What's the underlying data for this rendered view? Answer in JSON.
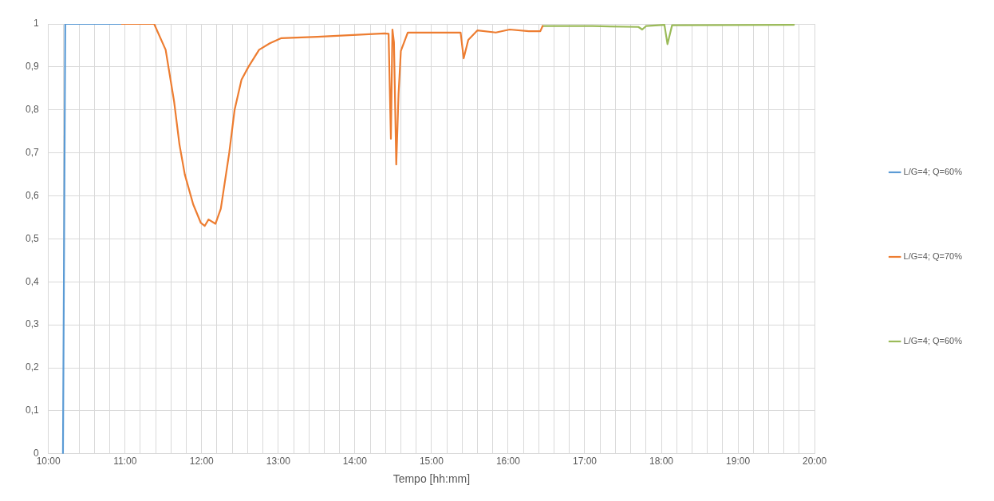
{
  "chart_data": {
    "type": "line",
    "xlabel": "Tempo [hh:mm]",
    "xlim": [
      10,
      20
    ],
    "xticks": [
      {
        "value": 10,
        "label": "10:00"
      },
      {
        "value": 10.2,
        "label": null
      },
      {
        "value": 10.4,
        "label": null
      },
      {
        "value": 10.6,
        "label": null
      },
      {
        "value": 10.8,
        "label": null
      },
      {
        "value": 11,
        "label": "11:00"
      },
      {
        "value": 11.2,
        "label": null
      },
      {
        "value": 11.4,
        "label": null
      },
      {
        "value": 11.6,
        "label": null
      },
      {
        "value": 11.8,
        "label": null
      },
      {
        "value": 12,
        "label": "12:00"
      },
      {
        "value": 12.2,
        "label": null
      },
      {
        "value": 12.4,
        "label": null
      },
      {
        "value": 12.6,
        "label": null
      },
      {
        "value": 12.8,
        "label": null
      },
      {
        "value": 13,
        "label": "13:00"
      },
      {
        "value": 13.2,
        "label": null
      },
      {
        "value": 13.4,
        "label": null
      },
      {
        "value": 13.6,
        "label": null
      },
      {
        "value": 13.8,
        "label": null
      },
      {
        "value": 14,
        "label": "14:00"
      },
      {
        "value": 14.2,
        "label": null
      },
      {
        "value": 14.4,
        "label": null
      },
      {
        "value": 14.6,
        "label": null
      },
      {
        "value": 14.8,
        "label": null
      },
      {
        "value": 15,
        "label": "15:00"
      },
      {
        "value": 15.2,
        "label": null
      },
      {
        "value": 15.4,
        "label": null
      },
      {
        "value": 15.6,
        "label": null
      },
      {
        "value": 15.8,
        "label": null
      },
      {
        "value": 16,
        "label": "16:00"
      },
      {
        "value": 16.2,
        "label": null
      },
      {
        "value": 16.4,
        "label": null
      },
      {
        "value": 16.6,
        "label": null
      },
      {
        "value": 16.8,
        "label": null
      },
      {
        "value": 17,
        "label": "17:00"
      },
      {
        "value": 17.2,
        "label": null
      },
      {
        "value": 17.4,
        "label": null
      },
      {
        "value": 17.6,
        "label": null
      },
      {
        "value": 17.8,
        "label": null
      },
      {
        "value": 18,
        "label": "18:00"
      },
      {
        "value": 18.2,
        "label": null
      },
      {
        "value": 18.4,
        "label": null
      },
      {
        "value": 18.6,
        "label": null
      },
      {
        "value": 18.8,
        "label": null
      },
      {
        "value": 19,
        "label": "19:00"
      },
      {
        "value": 19.2,
        "label": null
      },
      {
        "value": 19.4,
        "label": null
      },
      {
        "value": 19.6,
        "label": null
      },
      {
        "value": 19.8,
        "label": null
      },
      {
        "value": 20,
        "label": "20:00"
      }
    ],
    "ylim": [
      0,
      1
    ],
    "yticks": [
      0,
      {
        "value": 0.1,
        "label": "0,1"
      },
      {
        "value": 0.2,
        "label": "0,2"
      },
      {
        "value": 0.3,
        "label": "0,3"
      },
      {
        "value": 0.4,
        "label": "0,4"
      },
      {
        "value": 0.5,
        "label": "0,5"
      },
      {
        "value": 0.6,
        "label": "0,6"
      },
      {
        "value": 0.7,
        "label": "0,7"
      },
      {
        "value": 0.8,
        "label": "0,8"
      },
      {
        "value": 0.9,
        "label": "0,9"
      },
      1
    ],
    "grid": true,
    "legend": "right",
    "line_style": "solid",
    "series": [
      {
        "name": "L/G=4; Q=60%",
        "color": "#5b9bd5",
        "x": [
          10.19,
          10.22,
          10.6,
          10.94
        ],
        "values": [
          0,
          1,
          1,
          1
        ]
      },
      {
        "name": "L/G=4; Q=70%",
        "color": "#ed7d31",
        "x": [
          10.94,
          11.38,
          11.53,
          11.64,
          11.71,
          11.78,
          11.89,
          11.99,
          12.04,
          12.09,
          12.18,
          12.25,
          12.36,
          12.43,
          12.52,
          12.61,
          12.75,
          12.89,
          13.04,
          13.51,
          14.39,
          14.44,
          14.47,
          14.49,
          14.51,
          14.54,
          14.57,
          14.6,
          14.69,
          14.82,
          15.38,
          15.42,
          15.48,
          15.6,
          15.84,
          16.02,
          16.27,
          16.42,
          16.45
        ],
        "values": [
          1,
          1,
          0.94,
          0.82,
          0.72,
          0.65,
          0.58,
          0.537,
          0.53,
          0.545,
          0.535,
          0.57,
          0.7,
          0.8,
          0.87,
          0.9,
          0.94,
          0.955,
          0.967,
          0.97,
          0.978,
          0.977,
          0.733,
          0.987,
          0.957,
          0.673,
          0.837,
          0.937,
          0.98,
          0.98,
          0.98,
          0.92,
          0.963,
          0.985,
          0.98,
          0.987,
          0.983,
          0.983,
          0.995
        ]
      },
      {
        "name": "L/G=4; Q=60%",
        "color": "#9bbb59",
        "x": [
          16.45,
          17.1,
          17.7,
          17.75,
          17.8,
          18.04,
          18.08,
          18.14,
          19.73
        ],
        "values": [
          0.995,
          0.995,
          0.993,
          0.987,
          0.995,
          0.998,
          0.953,
          0.997,
          0.998
        ]
      }
    ]
  }
}
